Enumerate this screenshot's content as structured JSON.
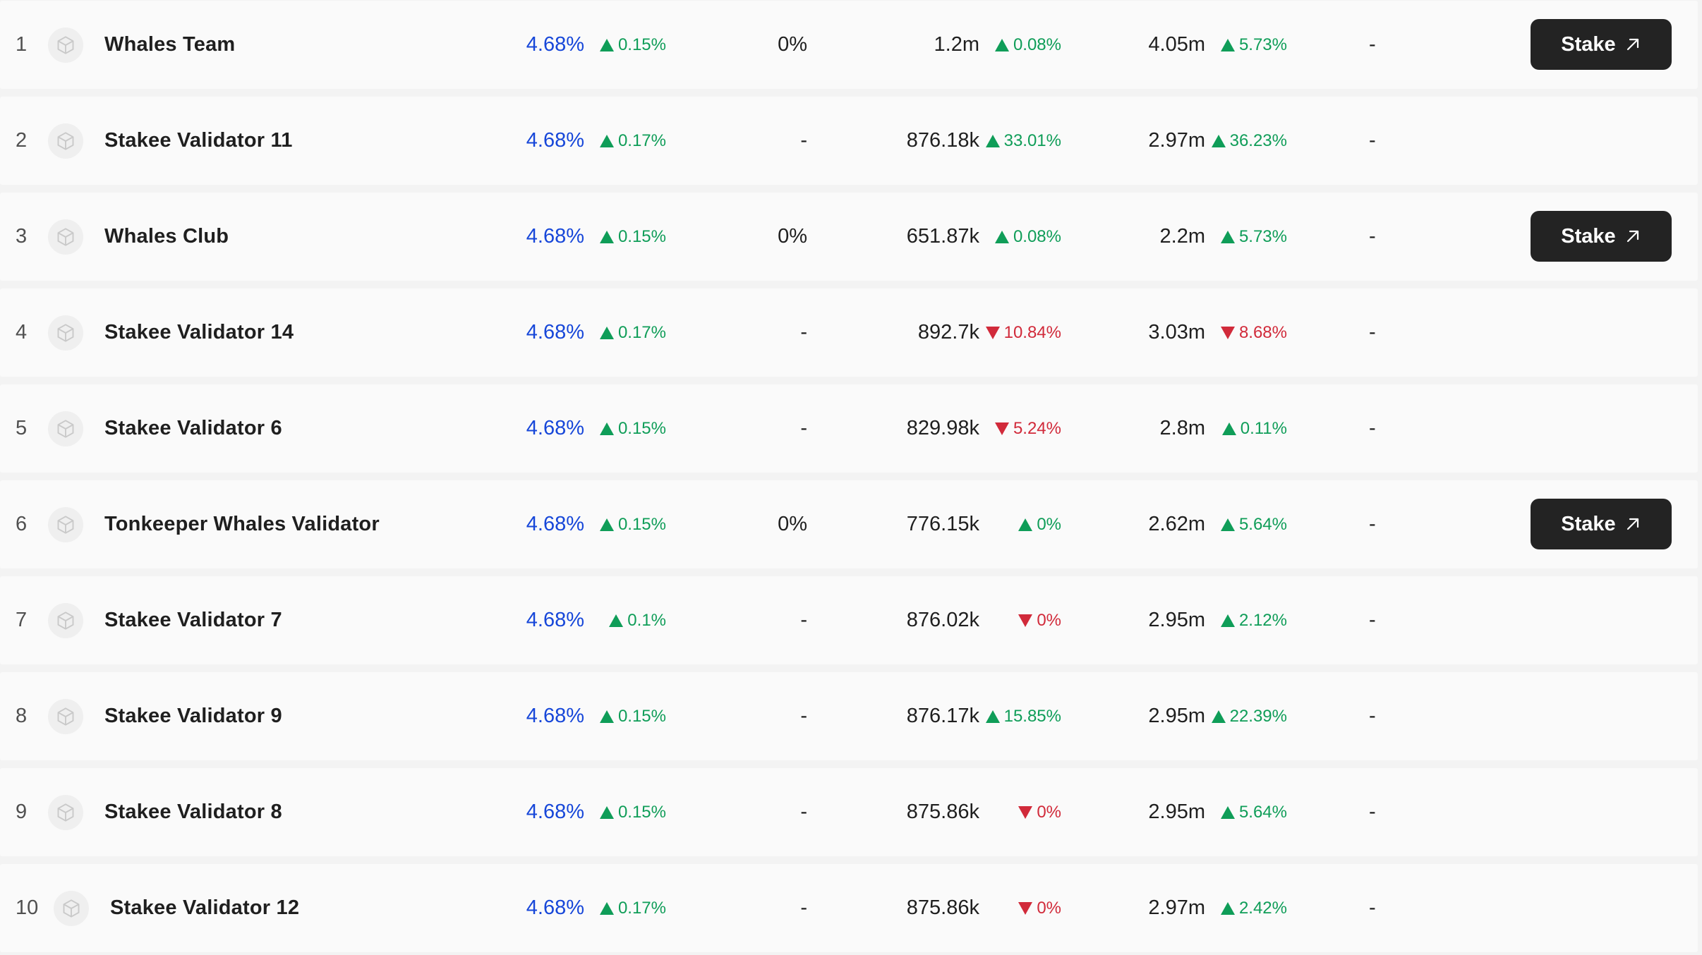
{
  "validators": [
    {
      "rank": "1",
      "name": "Whales Team",
      "apy": "4.68%",
      "apy_change": "0.15%",
      "apy_dir": "up",
      "fee": "0%",
      "stake": "1.2m",
      "stake_change": "0.08%",
      "stake_dir": "up",
      "total": "4.05m",
      "total_change": "5.73%",
      "total_dir": "up",
      "extra": "-",
      "has_stake": true
    },
    {
      "rank": "2",
      "name": "Stakee Validator 11",
      "apy": "4.68%",
      "apy_change": "0.17%",
      "apy_dir": "up",
      "fee": "-",
      "stake": "876.18k",
      "stake_change": "33.01%",
      "stake_dir": "up",
      "total": "2.97m",
      "total_change": "36.23%",
      "total_dir": "up",
      "extra": "-",
      "has_stake": false
    },
    {
      "rank": "3",
      "name": "Whales Club",
      "apy": "4.68%",
      "apy_change": "0.15%",
      "apy_dir": "up",
      "fee": "0%",
      "stake": "651.87k",
      "stake_change": "0.08%",
      "stake_dir": "up",
      "total": "2.2m",
      "total_change": "5.73%",
      "total_dir": "up",
      "extra": "-",
      "has_stake": true
    },
    {
      "rank": "4",
      "name": "Stakee Validator 14",
      "apy": "4.68%",
      "apy_change": "0.17%",
      "apy_dir": "up",
      "fee": "-",
      "stake": "892.7k",
      "stake_change": "10.84%",
      "stake_dir": "down",
      "total": "3.03m",
      "total_change": "8.68%",
      "total_dir": "down",
      "extra": "-",
      "has_stake": false
    },
    {
      "rank": "5",
      "name": "Stakee Validator 6",
      "apy": "4.68%",
      "apy_change": "0.15%",
      "apy_dir": "up",
      "fee": "-",
      "stake": "829.98k",
      "stake_change": "5.24%",
      "stake_dir": "down",
      "total": "2.8m",
      "total_change": "0.11%",
      "total_dir": "up",
      "extra": "-",
      "has_stake": false
    },
    {
      "rank": "6",
      "name": "Tonkeeper Whales Validator",
      "apy": "4.68%",
      "apy_change": "0.15%",
      "apy_dir": "up",
      "fee": "0%",
      "stake": "776.15k",
      "stake_change": "0%",
      "stake_dir": "up",
      "total": "2.62m",
      "total_change": "5.64%",
      "total_dir": "up",
      "extra": "-",
      "has_stake": true
    },
    {
      "rank": "7",
      "name": "Stakee Validator 7",
      "apy": "4.68%",
      "apy_change": "0.1%",
      "apy_dir": "up",
      "fee": "-",
      "stake": "876.02k",
      "stake_change": "0%",
      "stake_dir": "down",
      "total": "2.95m",
      "total_change": "2.12%",
      "total_dir": "up",
      "extra": "-",
      "has_stake": false
    },
    {
      "rank": "8",
      "name": "Stakee Validator 9",
      "apy": "4.68%",
      "apy_change": "0.15%",
      "apy_dir": "up",
      "fee": "-",
      "stake": "876.17k",
      "stake_change": "15.85%",
      "stake_dir": "up",
      "total": "2.95m",
      "total_change": "22.39%",
      "total_dir": "up",
      "extra": "-",
      "has_stake": false
    },
    {
      "rank": "9",
      "name": "Stakee Validator 8",
      "apy": "4.68%",
      "apy_change": "0.15%",
      "apy_dir": "up",
      "fee": "-",
      "stake": "875.86k",
      "stake_change": "0%",
      "stake_dir": "down",
      "total": "2.95m",
      "total_change": "5.64%",
      "total_dir": "up",
      "extra": "-",
      "has_stake": false
    },
    {
      "rank": "10",
      "name": "Stakee Validator 12",
      "apy": "4.68%",
      "apy_change": "0.17%",
      "apy_dir": "up",
      "fee": "-",
      "stake": "875.86k",
      "stake_change": "0%",
      "stake_dir": "down",
      "total": "2.97m",
      "total_change": "2.42%",
      "total_dir": "up",
      "extra": "-",
      "has_stake": false
    }
  ],
  "stake_button_label": "Stake",
  "icons": {
    "logo": "cube-icon",
    "stake": "arrow-up-right-icon",
    "up": "triangle-up-icon",
    "down": "triangle-down-icon"
  },
  "colors": {
    "up": "#0f9d58",
    "down": "#d12a3a",
    "apy": "#1747d9",
    "button": "#232323"
  }
}
